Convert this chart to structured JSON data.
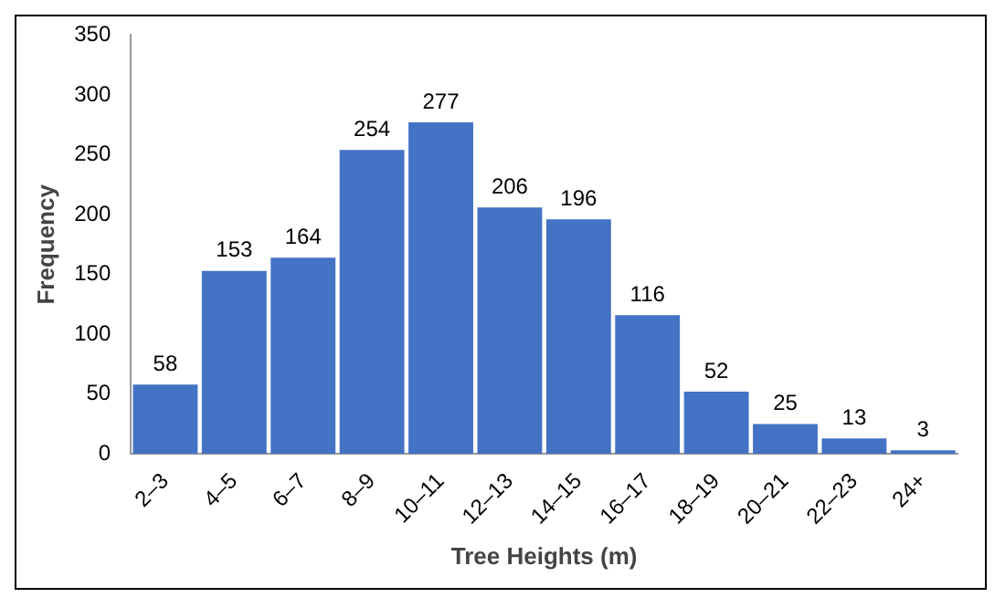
{
  "chart_data": {
    "type": "bar",
    "xlabel": "Tree Heights (m)",
    "ylabel": "Frequency",
    "categories": [
      "2–3",
      "4–5",
      "6–7",
      "8–9",
      "10–11",
      "12–13",
      "14–15",
      "16–17",
      "18–19",
      "20–21",
      "22–23",
      "24+"
    ],
    "values": [
      58,
      153,
      164,
      254,
      277,
      206,
      196,
      116,
      52,
      25,
      13,
      3
    ],
    "color": "#4472c4",
    "ylim": [
      0,
      350
    ],
    "yticks": [
      0,
      50,
      100,
      150,
      200,
      250,
      300,
      350
    ],
    "grid": false,
    "data_labels": true
  }
}
